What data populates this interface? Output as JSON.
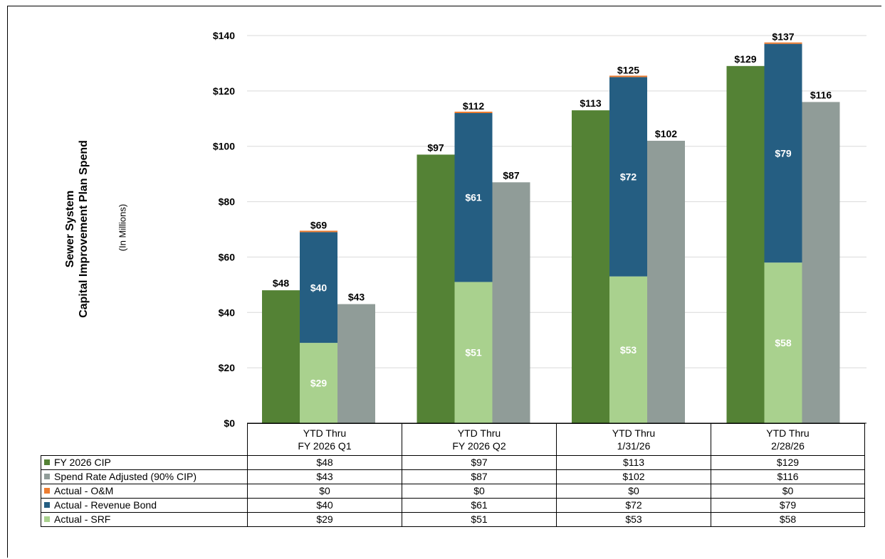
{
  "chart_data": {
    "type": "bar",
    "ylabel_lines": [
      "Sewer System",
      "Capital Improvement Plan Spend"
    ],
    "ylabel_unit": "(In Millions)",
    "ylim": [
      0,
      140
    ],
    "yticks": [
      0,
      20,
      40,
      60,
      80,
      100,
      120,
      140
    ],
    "ytick_labels": [
      "$0",
      "$20",
      "$40",
      "$60",
      "$80",
      "$100",
      "$120",
      "$140"
    ],
    "grid": true,
    "categories": [
      [
        "YTD Thru",
        "FY 2026 Q1"
      ],
      [
        "YTD Thru",
        "FY 2026 Q2"
      ],
      [
        "YTD Thru",
        "1/31/26"
      ],
      [
        "YTD Thru",
        "2/28/26"
      ]
    ],
    "series": [
      {
        "name": "FY 2026 CIP",
        "color": "#548235",
        "values": [
          48,
          97,
          113,
          129
        ],
        "labels": [
          "$48",
          "$97",
          "$113",
          "$129"
        ]
      },
      {
        "name": "Spend Rate Adjusted (90% CIP)",
        "color": "#909c98",
        "values": [
          43,
          87,
          102,
          116
        ],
        "labels": [
          "$43",
          "$87",
          "$102",
          "$116"
        ]
      },
      {
        "name": "Actual - O&M",
        "color": "#ed7d31",
        "values": [
          0,
          0,
          0,
          0
        ],
        "labels": [
          "$0",
          "$0",
          "$0",
          "$0"
        ]
      },
      {
        "name": "Actual - Revenue Bond",
        "color": "#255e82",
        "values": [
          40,
          61,
          72,
          79
        ],
        "labels": [
          "$40",
          "$61",
          "$72",
          "$79"
        ]
      },
      {
        "name": "Actual - SRF",
        "color": "#a9d18e",
        "values": [
          29,
          51,
          53,
          58
        ],
        "labels": [
          "$29",
          "$51",
          "$53",
          "$58"
        ]
      }
    ],
    "stack_totals": [
      69,
      112,
      125,
      137
    ],
    "stack_total_labels": [
      "$69",
      "$112",
      "$125",
      "$137"
    ],
    "legend": "data table below chart"
  }
}
